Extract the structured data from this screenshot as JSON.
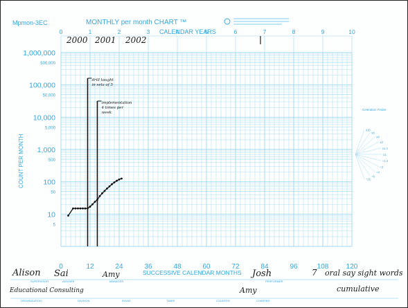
{
  "chart_data": {
    "type": "line",
    "header": {
      "code": "Mpmon-3EC",
      "title": "MONTHLY per month CHART ™",
      "axis_top_label": "CALENDAR YEARS",
      "year_ticks": [
        "0",
        "1",
        "2",
        "3",
        "4",
        "5",
        "6",
        "7",
        "8",
        "9",
        "10"
      ]
    },
    "handwritten_years": [
      "2000",
      "2001",
      "2002"
    ],
    "ylabel": "COUNT PER MONTH",
    "xlabel": "SUCCESSIVE CALENDAR MONTHS",
    "x_ticks": [
      "0",
      "12",
      "24",
      "36",
      "48",
      "60",
      "72",
      "84",
      "96",
      "108",
      "120"
    ],
    "y_scale": "log",
    "y_ticks_major": [
      "1,000,000",
      "100,000",
      "10,000",
      "1,000",
      "100",
      "10"
    ],
    "y_ticks_minor": [
      "500,000",
      "50,000",
      "5,000",
      "500",
      "50",
      "5"
    ],
    "ylim": [
      1,
      1000000
    ],
    "xlim": [
      0,
      120
    ],
    "phase_lines": [
      {
        "x": 11,
        "note_lines": [
          "drill taught",
          "in sets of 5"
        ]
      },
      {
        "x": 15,
        "note_lines": [
          "implementation",
          "4 times per",
          "week"
        ]
      }
    ],
    "series": [
      {
        "x": [
          3,
          5,
          6,
          7,
          8,
          9,
          10,
          11,
          12,
          13,
          14,
          15,
          16,
          17,
          18,
          19,
          20,
          21,
          22,
          23,
          24,
          25
        ],
        "values": [
          9,
          15,
          15,
          15,
          15,
          15,
          15,
          15,
          17,
          20,
          24,
          28,
          36,
          44,
          52,
          62,
          72,
          84,
          96,
          108,
          118,
          126
        ]
      }
    ],
    "rate_legend_title": "Celeration Finder",
    "rate_legend_values": [
      "x16",
      "x8",
      "x4",
      "x2",
      "x1.4",
      "x1",
      "÷1.4",
      "÷2",
      "÷4",
      "÷8",
      "÷16"
    ],
    "footer_labels_row1": [
      "SUPERVISOR",
      "ADVISER",
      "MANAGER",
      "PERFORMER"
    ],
    "footer_labels_row2": [
      "ORGANIZATION",
      "DIVISION",
      "ROOM",
      "TIMER",
      "COUNTER",
      "CHARTER"
    ],
    "handwritten_footer": {
      "supervisor": "Alison",
      "adviser": "Sai",
      "manager": "Amy",
      "performer": "Josh",
      "age": "7",
      "counted": "oral say sight words",
      "organization": "Educational Consulting",
      "charter": "Amy",
      "note": "cumulative"
    }
  }
}
